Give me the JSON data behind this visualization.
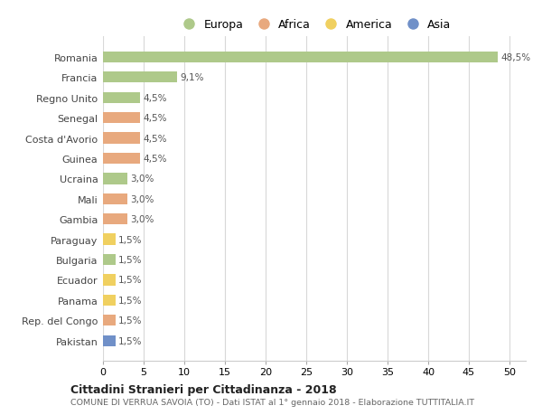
{
  "countries": [
    "Romania",
    "Francia",
    "Regno Unito",
    "Senegal",
    "Costa d'Avorio",
    "Guinea",
    "Ucraina",
    "Mali",
    "Gambia",
    "Paraguay",
    "Bulgaria",
    "Ecuador",
    "Panama",
    "Rep. del Congo",
    "Pakistan"
  ],
  "values": [
    48.5,
    9.1,
    4.5,
    4.5,
    4.5,
    4.5,
    3.0,
    3.0,
    3.0,
    1.5,
    1.5,
    1.5,
    1.5,
    1.5,
    1.5
  ],
  "labels": [
    "48,5%",
    "9,1%",
    "4,5%",
    "4,5%",
    "4,5%",
    "4,5%",
    "3,0%",
    "3,0%",
    "3,0%",
    "1,5%",
    "1,5%",
    "1,5%",
    "1,5%",
    "1,5%",
    "1,5%"
  ],
  "colors": [
    "#aec98a",
    "#aec98a",
    "#aec98a",
    "#e8a97e",
    "#e8a97e",
    "#e8a97e",
    "#aec98a",
    "#e8a97e",
    "#e8a97e",
    "#f0d060",
    "#aec98a",
    "#f0d060",
    "#f0d060",
    "#e8a97e",
    "#7090c8"
  ],
  "legend_labels": [
    "Europa",
    "Africa",
    "America",
    "Asia"
  ],
  "legend_colors": [
    "#aec98a",
    "#e8a97e",
    "#f0d060",
    "#7090c8"
  ],
  "title": "Cittadini Stranieri per Cittadinanza - 2018",
  "subtitle": "COMUNE DI VERRUA SAVOIA (TO) - Dati ISTAT al 1° gennaio 2018 - Elaborazione TUTTITALIA.IT",
  "xlim": [
    0,
    52
  ],
  "xticks": [
    0,
    5,
    10,
    15,
    20,
    25,
    30,
    35,
    40,
    45,
    50
  ],
  "background_color": "#ffffff",
  "grid_color": "#d8d8d8"
}
